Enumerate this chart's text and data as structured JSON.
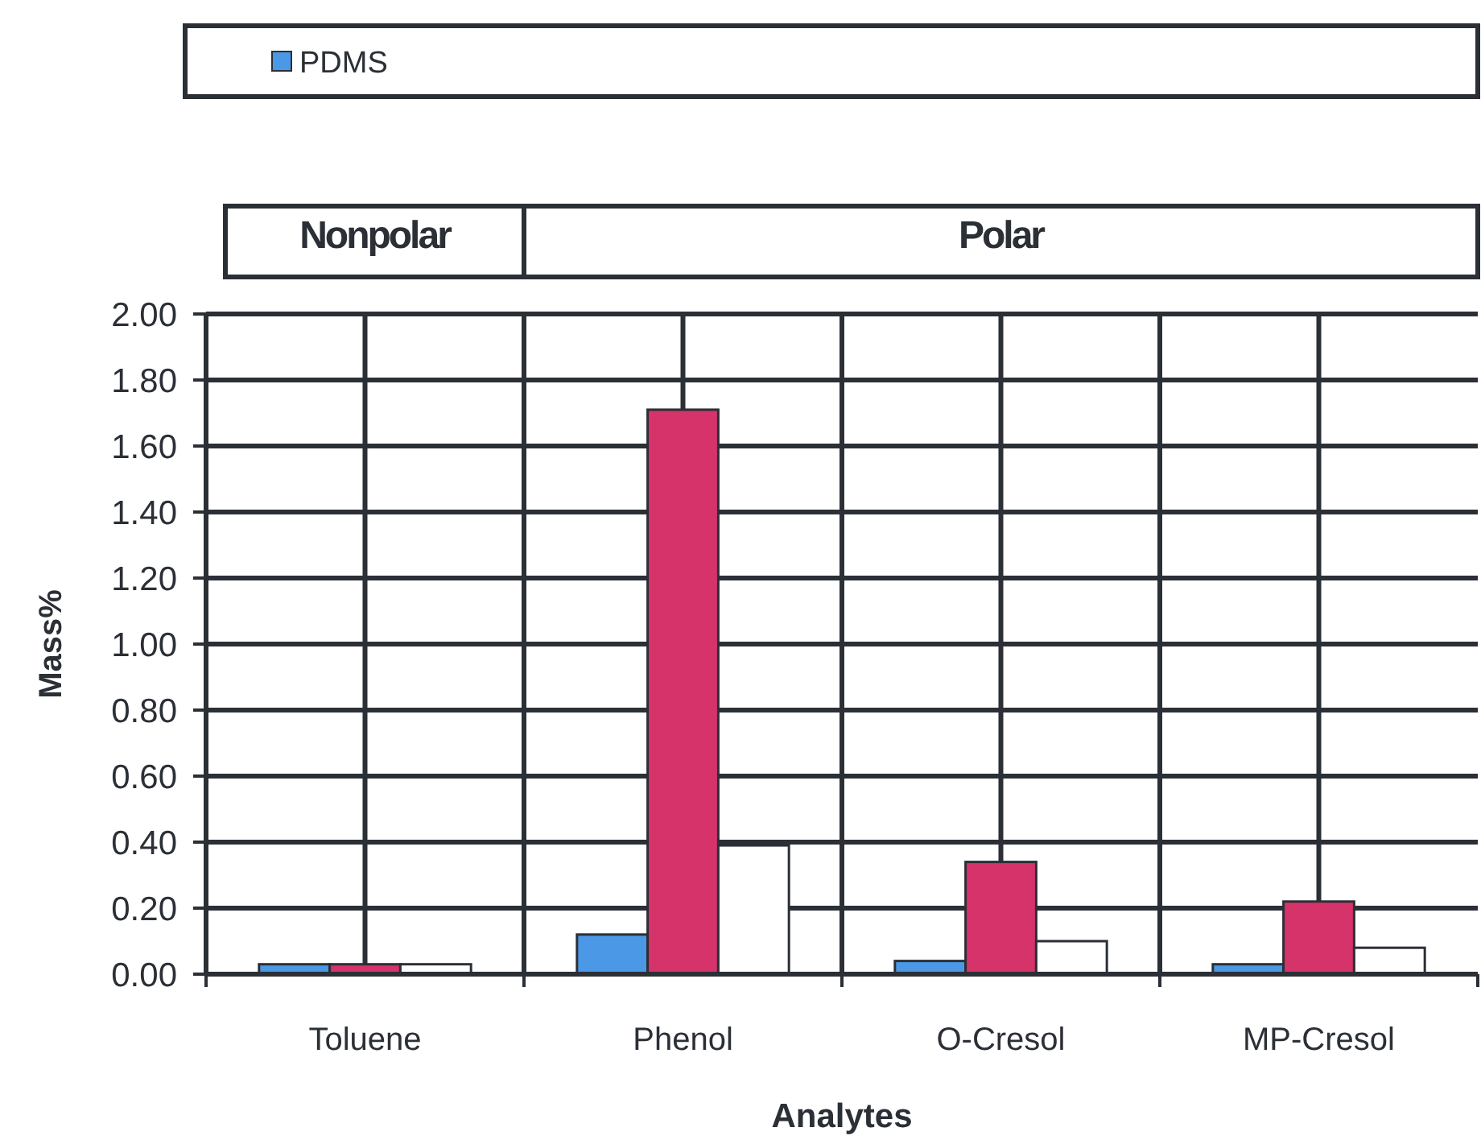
{
  "chart_data": {
    "type": "bar",
    "xlabel": "Analytes",
    "ylabel": "Mass%",
    "annotations": [
      "Nonpolar",
      "Polar"
    ],
    "categories": [
      "Toluene",
      "Phenol",
      "O-Cresol",
      "MP-Cresol"
    ],
    "series": [
      {
        "name": "PDMS",
        "color": "#4b98e6",
        "values": [
          0.03,
          0.12,
          0.04,
          0.03
        ]
      },
      {
        "color": "#d6336b",
        "values": [
          0.03,
          1.71,
          0.34,
          0.22
        ]
      },
      {
        "color": "#ffffff",
        "values": [
          0.03,
          0.39,
          0.1,
          0.08
        ]
      }
    ],
    "ylim": [
      0,
      2
    ],
    "yticks": [
      {
        "value": 0,
        "label": "0.00"
      },
      {
        "value": 0.2,
        "label": "0.20"
      },
      {
        "value": 0.4,
        "label": "0.40"
      },
      {
        "value": 0.6,
        "label": "0.60"
      },
      {
        "value": 0.8,
        "label": "0.80"
      },
      {
        "value": 1,
        "label": "1.00"
      },
      {
        "value": 1.2,
        "label": "1.20"
      },
      {
        "value": 1.4,
        "label": "1.40"
      },
      {
        "value": 1.6,
        "label": "1.60"
      },
      {
        "value": 1.8,
        "label": "1.80"
      },
      {
        "value": 2,
        "label": "2.00"
      }
    ],
    "grid": true,
    "legend": "top"
  }
}
